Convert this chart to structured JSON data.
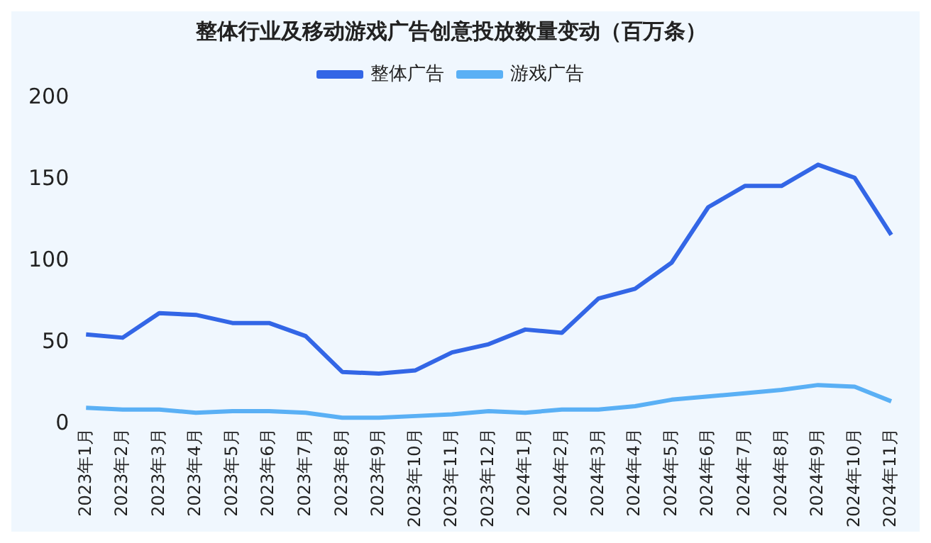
{
  "chart_data": {
    "type": "line",
    "title": "整体行业及移动游戏广告创意投放数量变动（百万条）",
    "categories": [
      "2023年1月",
      "2023年2月",
      "2023年3月",
      "2023年4月",
      "2023年5月",
      "2023年6月",
      "2023年7月",
      "2023年8月",
      "2023年9月",
      "2023年10月",
      "2023年11月",
      "2023年12月",
      "2024年1月",
      "2024年2月",
      "2024年3月",
      "2024年4月",
      "2024年5月",
      "2024年6月",
      "2024年7月",
      "2024年8月",
      "2024年9月",
      "2024年10月",
      "2024年11月"
    ],
    "series": [
      {
        "name": "整体广告",
        "color": "#3366e6",
        "values": [
          55,
          53,
          68,
          67,
          62,
          62,
          54,
          32,
          31,
          33,
          44,
          49,
          58,
          56,
          77,
          83,
          99,
          133,
          146,
          146,
          159,
          151,
          116
        ]
      },
      {
        "name": "游戏广告",
        "color": "#5ab0f5",
        "values": [
          10,
          9,
          9,
          7,
          8,
          8,
          7,
          4,
          4,
          5,
          6,
          8,
          7,
          9,
          9,
          11,
          15,
          17,
          19,
          21,
          24,
          23,
          14
        ]
      }
    ],
    "ylim": [
      0,
      200
    ],
    "yticks": [
      0,
      50,
      100,
      150,
      200
    ],
    "grid": false,
    "legend": "top",
    "marker": "none",
    "line_style": "solid"
  }
}
